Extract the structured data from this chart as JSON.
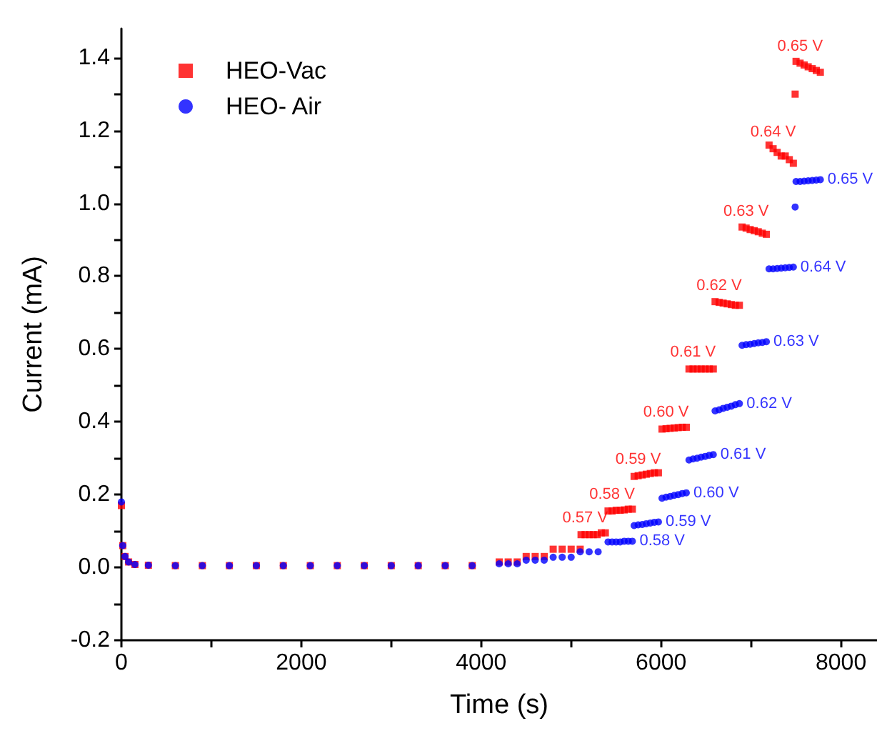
{
  "chart_data": {
    "type": "scatter",
    "xlabel": "Time (s)",
    "ylabel": "Current (mA)",
    "xlim": [
      0,
      8400
    ],
    "ylim": [
      -0.2,
      1.48
    ],
    "xticks": [
      0,
      {
        "value": 1000,
        "label": null
      },
      2000,
      {
        "value": 3000,
        "label": null
      },
      4000,
      {
        "value": 5000,
        "label": null
      },
      6000,
      {
        "value": 7000,
        "label": null
      },
      8000
    ],
    "yticks": [
      -0.2,
      {
        "value": -0.1,
        "label": null
      },
      {
        "value": 0,
        "label": "0.0"
      },
      {
        "value": 0.1,
        "label": null
      },
      0.2,
      {
        "value": 0.3,
        "label": null
      },
      0.4,
      {
        "value": 0.5,
        "label": null
      },
      0.6,
      {
        "value": 0.7,
        "label": null
      },
      0.8,
      {
        "value": 0.9,
        "label": null
      },
      {
        "value": 1,
        "label": "1.0"
      },
      {
        "value": 1.1,
        "label": null
      },
      1.2,
      {
        "value": 1.3,
        "label": null
      },
      1.4
    ],
    "grid": false,
    "legend": "top left",
    "annotations": [
      {
        "text": "0.57 V",
        "x": 5155,
        "y": 0.09
      },
      {
        "text": "0.58 V",
        "x": 5455,
        "y": 0.155
      },
      {
        "text": "0.59 V",
        "x": 5745,
        "y": 0.252
      },
      {
        "text": "0.60 V",
        "x": 6055,
        "y": 0.381
      },
      {
        "text": "0.61 V",
        "x": 6355,
        "y": 0.545
      },
      {
        "text": "0.62 V",
        "x": 6645,
        "y": 0.728
      },
      {
        "text": "0.63 V",
        "x": 6945,
        "y": 0.932
      },
      {
        "text": "0.64 V",
        "x": 7245,
        "y": 1.15
      },
      {
        "text": "0.65 V",
        "x": 7545,
        "y": 1.385
      },
      {
        "text": "0.58 V",
        "x": 5680,
        "y": 0.072
      },
      {
        "text": "0.59 V",
        "x": 5970,
        "y": 0.125
      },
      {
        "text": "0.60 V",
        "x": 6280,
        "y": 0.205
      },
      {
        "text": "0.61 V",
        "x": 6580,
        "y": 0.31
      },
      {
        "text": "0.62 V",
        "x": 6870,
        "y": 0.45
      },
      {
        "text": "0.63 V",
        "x": 7170,
        "y": 0.62
      },
      {
        "text": "0.64 V",
        "x": 7470,
        "y": 0.825
      },
      {
        "text": "0.65 V",
        "x": 7770,
        "y": 1.065
      }
    ],
    "series": [
      {
        "name": "HEO-Vac",
        "color": "#ff0000",
        "marker": "square",
        "x": [
          0,
          15,
          40,
          80,
          150,
          300,
          600,
          900,
          1200,
          1500,
          1800,
          2100,
          2400,
          2700,
          3000,
          3300,
          3600,
          3900,
          4200,
          4300,
          4400,
          4500,
          4600,
          4700,
          4800,
          4900,
          5000,
          5100,
          5110,
          5155,
          5200,
          5245,
          5290,
          5335,
          5380,
          5410,
          5455,
          5500,
          5545,
          5590,
          5635,
          5680,
          5700,
          5745,
          5790,
          5835,
          5880,
          5925,
          5970,
          6010,
          6055,
          6100,
          6145,
          6190,
          6235,
          6280,
          6310,
          6355,
          6400,
          6445,
          6490,
          6535,
          6580,
          6600,
          6645,
          6690,
          6735,
          6780,
          6825,
          6870,
          6900,
          6945,
          6990,
          7035,
          7080,
          7125,
          7170,
          7200,
          7245,
          7290,
          7335,
          7380,
          7425,
          7470,
          7490,
          7500,
          7545,
          7590,
          7635,
          7680,
          7725,
          7770
        ],
        "values": [
          0.17,
          0.06,
          0.03,
          0.015,
          0.008,
          0.006,
          0.005,
          0.005,
          0.005,
          0.005,
          0.005,
          0.005,
          0.005,
          0.005,
          0.005,
          0.005,
          0.005,
          0.005,
          0.015,
          0.015,
          0.015,
          0.03,
          0.03,
          0.03,
          0.05,
          0.05,
          0.05,
          0.05,
          0.09,
          0.09,
          0.09,
          0.09,
          0.09,
          0.095,
          0.095,
          0.155,
          0.155,
          0.157,
          0.157,
          0.158,
          0.16,
          0.16,
          0.25,
          0.252,
          0.254,
          0.256,
          0.258,
          0.26,
          0.26,
          0.38,
          0.381,
          0.382,
          0.383,
          0.384,
          0.385,
          0.385,
          0.545,
          0.545,
          0.545,
          0.545,
          0.545,
          0.545,
          0.545,
          0.73,
          0.728,
          0.726,
          0.724,
          0.722,
          0.72,
          0.72,
          0.935,
          0.932,
          0.928,
          0.925,
          0.922,
          0.918,
          0.915,
          1.16,
          1.15,
          1.14,
          1.13,
          1.13,
          1.12,
          1.11,
          1.3,
          1.39,
          1.385,
          1.38,
          1.375,
          1.37,
          1.365,
          1.36
        ]
      },
      {
        "name": "HEO- Air",
        "color": "#0000ff",
        "marker": "circle",
        "x": [
          0,
          15,
          40,
          80,
          150,
          300,
          600,
          900,
          1200,
          1500,
          1800,
          2100,
          2400,
          2700,
          3000,
          3300,
          3600,
          3900,
          4200,
          4300,
          4400,
          4500,
          4600,
          4700,
          4800,
          4900,
          5000,
          5100,
          5200,
          5300,
          5410,
          5455,
          5500,
          5545,
          5590,
          5635,
          5680,
          5700,
          5745,
          5790,
          5835,
          5880,
          5925,
          5970,
          6010,
          6055,
          6100,
          6145,
          6190,
          6235,
          6280,
          6310,
          6355,
          6400,
          6445,
          6490,
          6535,
          6580,
          6600,
          6645,
          6690,
          6735,
          6780,
          6825,
          6870,
          6900,
          6945,
          6990,
          7035,
          7080,
          7125,
          7170,
          7200,
          7245,
          7290,
          7335,
          7380,
          7425,
          7470,
          7490,
          7500,
          7545,
          7590,
          7635,
          7680,
          7725,
          7770
        ],
        "values": [
          0.18,
          0.06,
          0.03,
          0.015,
          0.008,
          0.006,
          0.005,
          0.005,
          0.005,
          0.005,
          0.005,
          0.005,
          0.005,
          0.005,
          0.005,
          0.005,
          0.005,
          0.005,
          0.01,
          0.01,
          0.01,
          0.02,
          0.02,
          0.02,
          0.028,
          0.028,
          0.028,
          0.043,
          0.043,
          0.043,
          0.07,
          0.07,
          0.07,
          0.07,
          0.072,
          0.072,
          0.072,
          0.115,
          0.117,
          0.118,
          0.12,
          0.122,
          0.124,
          0.125,
          0.19,
          0.193,
          0.195,
          0.198,
          0.2,
          0.203,
          0.205,
          0.295,
          0.298,
          0.3,
          0.303,
          0.305,
          0.308,
          0.31,
          0.43,
          0.433,
          0.437,
          0.44,
          0.443,
          0.447,
          0.45,
          0.61,
          0.612,
          0.613,
          0.615,
          0.617,
          0.618,
          0.62,
          0.82,
          0.82,
          0.821,
          0.822,
          0.823,
          0.824,
          0.825,
          0.99,
          1.06,
          1.06,
          1.061,
          1.062,
          1.063,
          1.064,
          1.065
        ]
      }
    ]
  }
}
